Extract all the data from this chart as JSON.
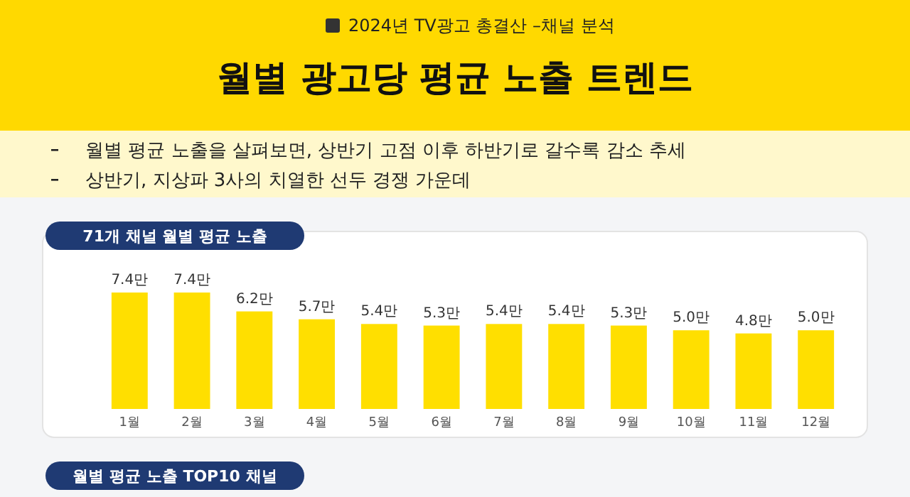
{
  "chart_data": {
    "type": "bar",
    "title": "월별 광고당 평균 노출 트렌드",
    "subtitle": "2024년 TV광고 총결산 –채널 분석",
    "categories": [
      "1월",
      "2월",
      "3월",
      "4월",
      "5월",
      "6월",
      "7월",
      "8월",
      "9월",
      "10월",
      "11월",
      "12월"
    ],
    "values": [
      7.4,
      7.4,
      6.2,
      5.7,
      5.4,
      5.3,
      5.4,
      5.4,
      5.3,
      5.0,
      4.8,
      5.0
    ],
    "value_labels": [
      "7.4만",
      "7.4만",
      "6.2만",
      "5.7만",
      "5.4만",
      "5.3만",
      "5.4만",
      "5.4만",
      "5.3만",
      "5.0만",
      "4.8만",
      "5.0만"
    ],
    "color": "#ffdf00",
    "annotations": [
      "월별 평균 노출을 살펴보면, 상반기 고점 이후 하반기로 갈수록 감소 추세",
      "상반기, 지상파 3사의 치열한 선두 경쟁 가운데",
      "71개 채널 월별 평균 노출",
      "월별 평균 노출 TOP10 채널"
    ]
  }
}
